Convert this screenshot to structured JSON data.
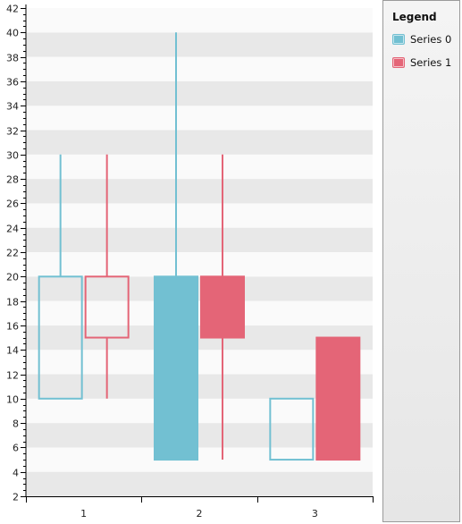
{
  "chart_data": {
    "type": "candlestick",
    "title": "",
    "xlabel": "",
    "ylabel": "",
    "categories": [
      "1",
      "2",
      "3"
    ],
    "ylim": [
      2,
      42
    ],
    "y_tick_step": 2,
    "y_minor_step": 0.5,
    "grid": "alternating horizontal bands",
    "legend_placement": "right",
    "series": [
      {
        "name": "Series 0",
        "color": "#72C0D2",
        "points": [
          {
            "category": "1",
            "open": 10,
            "close": 20,
            "low": 10,
            "high": 30,
            "filled": false
          },
          {
            "category": "2",
            "open": 20,
            "close": 5,
            "low": 5,
            "high": 40,
            "filled": true
          },
          {
            "category": "3",
            "open": 5,
            "close": 10,
            "low": 5,
            "high": 10,
            "filled": false
          }
        ]
      },
      {
        "name": "Series 1",
        "color": "#E46577",
        "points": [
          {
            "category": "1",
            "open": 15,
            "close": 20,
            "low": 10,
            "high": 30,
            "filled": false
          },
          {
            "category": "2",
            "open": 20,
            "close": 15,
            "low": 5,
            "high": 30,
            "filled": true
          },
          {
            "category": "3",
            "open": 15,
            "close": 5,
            "low": 5,
            "high": 15,
            "filled": true
          }
        ]
      }
    ]
  },
  "legend": {
    "title": "Legend",
    "items": [
      {
        "label": "Series 0",
        "color": "#72C0D2"
      },
      {
        "label": "Series 1",
        "color": "#E46577"
      }
    ]
  }
}
